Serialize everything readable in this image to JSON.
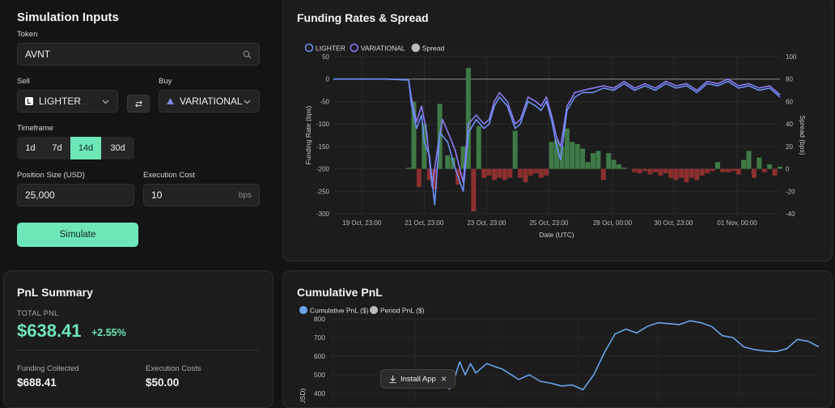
{
  "sim": {
    "title": "Simulation Inputs",
    "token_label": "Token",
    "token_value": "AVNT",
    "sell_label": "Sell",
    "sell_value": "LIGHTER",
    "buy_label": "Buy",
    "buy_value": "VARIATIONAL",
    "timeframe_label": "Timeframe",
    "timeframes": [
      "1d",
      "7d",
      "14d",
      "30d"
    ],
    "timeframe_selected": "14d",
    "position_label": "Position Size (USD)",
    "position_value": "25,000",
    "exec_label": "Execution Cost",
    "exec_value": "10",
    "exec_unit": "bps",
    "simulate_label": "Simulate"
  },
  "pnl": {
    "title": "PnL Summary",
    "total_label": "TOTAL PNL",
    "total_value": "$638.41",
    "total_pct": "+2.55%",
    "funding_label": "Funding Collected",
    "funding_value": "$688.41",
    "exec_label": "Execution Costs",
    "exec_value": "$50.00"
  },
  "install": {
    "label": "Install App",
    "close": "×"
  },
  "colors": {
    "accent": "#6ee7b7",
    "lighter": "#6b8ff5",
    "variational": "#8b7cf6",
    "spread_pos": "#3f7a46",
    "spread_neg": "#8b2f2f"
  },
  "chart_data": [
    {
      "type": "line+bar",
      "title": "Funding Rates & Spread",
      "legend": [
        "LIGHTER",
        "VARIATIONAL",
        "Spread"
      ],
      "xlabel": "Date (UTC)",
      "ylabel": "Funding Rate (bps)",
      "y2label": "Spread (bps)",
      "ylim": [
        -300,
        50
      ],
      "y2lim": [
        -40,
        100
      ],
      "yticks": [
        50,
        0,
        -50,
        -100,
        -150,
        -200,
        -250,
        -300
      ],
      "y2ticks": [
        100,
        80,
        60,
        40,
        20,
        0,
        -20,
        -40
      ],
      "xticks": [
        "19 Oct, 23:00",
        "21 Oct, 23:00",
        "23 Oct, 23:00",
        "25 Oct, 23:00",
        "28 Oct, 00:00",
        "30 Oct, 23:00",
        "01 Nov, 00:00"
      ],
      "x_hours": [
        0,
        48,
        96,
        144,
        193,
        240,
        289
      ],
      "x_range": [
        -22,
        322
      ],
      "series": [
        {
          "name": "LIGHTER",
          "color": "#6b8ff5",
          "points": [
            [
              -22,
              0
            ],
            [
              0,
              0
            ],
            [
              20,
              0
            ],
            [
              36,
              -2
            ],
            [
              38,
              -55
            ],
            [
              42,
              -110
            ],
            [
              46,
              -80
            ],
            [
              48,
              -140
            ],
            [
              52,
              -170
            ],
            [
              56,
              -280
            ],
            [
              58,
              -200
            ],
            [
              60,
              -120
            ],
            [
              66,
              -140
            ],
            [
              72,
              -200
            ],
            [
              78,
              -250
            ],
            [
              82,
              -120
            ],
            [
              88,
              -90
            ],
            [
              94,
              -110
            ],
            [
              98,
              -100
            ],
            [
              102,
              -60
            ],
            [
              106,
              -40
            ],
            [
              112,
              -60
            ],
            [
              118,
              -110
            ],
            [
              122,
              -100
            ],
            [
              128,
              -50
            ],
            [
              134,
              -60
            ],
            [
              138,
              -70
            ],
            [
              142,
              -50
            ],
            [
              146,
              -90
            ],
            [
              150,
              -150
            ],
            [
              153,
              -180
            ],
            [
              158,
              -70
            ],
            [
              164,
              -40
            ],
            [
              170,
              -30
            ],
            [
              178,
              -30
            ],
            [
              186,
              -20
            ],
            [
              194,
              -25
            ],
            [
              202,
              -10
            ],
            [
              210,
              -25
            ],
            [
              218,
              -15
            ],
            [
              226,
              -25
            ],
            [
              234,
              -10
            ],
            [
              242,
              -20
            ],
            [
              250,
              -15
            ],
            [
              258,
              -30
            ],
            [
              266,
              -10
            ],
            [
              274,
              -15
            ],
            [
              282,
              -5
            ],
            [
              290,
              -20
            ],
            [
              298,
              -15
            ],
            [
              306,
              -25
            ],
            [
              314,
              -20
            ],
            [
              322,
              -40
            ]
          ]
        },
        {
          "name": "VARIATIONAL",
          "color": "#8b7cf6",
          "points": [
            [
              -22,
              0
            ],
            [
              0,
              0
            ],
            [
              20,
              0
            ],
            [
              36,
              -2
            ],
            [
              38,
              -40
            ],
            [
              42,
              -95
            ],
            [
              46,
              -60
            ],
            [
              50,
              -120
            ],
            [
              54,
              -240
            ],
            [
              58,
              -160
            ],
            [
              62,
              -90
            ],
            [
              68,
              -130
            ],
            [
              72,
              -160
            ],
            [
              78,
              -230
            ],
            [
              82,
              -100
            ],
            [
              88,
              -80
            ],
            [
              94,
              -100
            ],
            [
              98,
              -90
            ],
            [
              102,
              -50
            ],
            [
              106,
              -30
            ],
            [
              112,
              -50
            ],
            [
              118,
              -100
            ],
            [
              122,
              -90
            ],
            [
              128,
              -40
            ],
            [
              134,
              -50
            ],
            [
              138,
              -60
            ],
            [
              142,
              -40
            ],
            [
              146,
              -80
            ],
            [
              150,
              -130
            ],
            [
              153,
              -150
            ],
            [
              158,
              -60
            ],
            [
              164,
              -30
            ],
            [
              170,
              -25
            ],
            [
              178,
              -20
            ],
            [
              186,
              -15
            ],
            [
              194,
              -20
            ],
            [
              202,
              -5
            ],
            [
              210,
              -20
            ],
            [
              218,
              -10
            ],
            [
              226,
              -20
            ],
            [
              234,
              -5
            ],
            [
              242,
              -15
            ],
            [
              250,
              -10
            ],
            [
              258,
              -25
            ],
            [
              266,
              -5
            ],
            [
              274,
              -10
            ],
            [
              282,
              0
            ],
            [
              290,
              -15
            ],
            [
              298,
              -10
            ],
            [
              306,
              -20
            ],
            [
              314,
              -15
            ],
            [
              322,
              -35
            ]
          ]
        },
        {
          "name": "Spread",
          "color": "#7a7a7a",
          "bars": [
            [
              36,
              1
            ],
            [
              40,
              60
            ],
            [
              44,
              -16
            ],
            [
              48,
              40
            ],
            [
              52,
              -10
            ],
            [
              56,
              -18
            ],
            [
              60,
              58
            ],
            [
              66,
              12
            ],
            [
              70,
              10
            ],
            [
              74,
              -14
            ],
            [
              78,
              20
            ],
            [
              82,
              90
            ],
            [
              86,
              -38
            ],
            [
              90,
              38
            ],
            [
              94,
              -8
            ],
            [
              98,
              -6
            ],
            [
              102,
              -10
            ],
            [
              106,
              -8
            ],
            [
              110,
              -10
            ],
            [
              114,
              -8
            ],
            [
              118,
              34
            ],
            [
              122,
              -8
            ],
            [
              126,
              -12
            ],
            [
              130,
              -6
            ],
            [
              134,
              -4
            ],
            [
              138,
              -8
            ],
            [
              142,
              -6
            ],
            [
              146,
              24
            ],
            [
              150,
              26
            ],
            [
              154,
              20
            ],
            [
              158,
              36
            ],
            [
              162,
              24
            ],
            [
              166,
              22
            ],
            [
              170,
              18
            ],
            [
              174,
              6
            ],
            [
              178,
              14
            ],
            [
              182,
              16
            ],
            [
              186,
              -10
            ],
            [
              190,
              14
            ],
            [
              194,
              8
            ],
            [
              198,
              4
            ],
            [
              202,
              1
            ],
            [
              210,
              -3
            ],
            [
              214,
              -4
            ],
            [
              218,
              -2
            ],
            [
              222,
              -5
            ],
            [
              226,
              -3
            ],
            [
              230,
              -6
            ],
            [
              234,
              -4
            ],
            [
              238,
              -8
            ],
            [
              242,
              -10
            ],
            [
              246,
              -8
            ],
            [
              250,
              -12
            ],
            [
              254,
              -8
            ],
            [
              258,
              -10
            ],
            [
              262,
              -6
            ],
            [
              266,
              -4
            ],
            [
              270,
              -2
            ],
            [
              274,
              6
            ],
            [
              278,
              -3
            ],
            [
              282,
              -3
            ],
            [
              286,
              -2
            ],
            [
              290,
              -5
            ],
            [
              294,
              8
            ],
            [
              298,
              16
            ],
            [
              302,
              -8
            ],
            [
              306,
              10
            ],
            [
              310,
              -3
            ],
            [
              314,
              4
            ],
            [
              318,
              -6
            ],
            [
              322,
              2
            ]
          ]
        }
      ]
    },
    {
      "type": "line",
      "title": "Cumulative PnL",
      "legend": [
        "Cumulative PnL ($)",
        "Period PnL ($)"
      ],
      "ylabel": "USD)",
      "ylim": [
        350,
        800
      ],
      "yticks": [
        800,
        700,
        600,
        500,
        400
      ],
      "series": [
        {
          "name": "Cumulative PnL ($)",
          "color": "#6ba3e8",
          "points": [
            [
              0,
              420
            ],
            [
              2,
              480
            ],
            [
              4,
              570
            ],
            [
              6,
              500
            ],
            [
              8,
              560
            ],
            [
              10,
              510
            ],
            [
              14,
              560
            ],
            [
              20,
              530
            ],
            [
              26,
              475
            ],
            [
              30,
              500
            ],
            [
              34,
              465
            ],
            [
              38,
              455
            ],
            [
              42,
              440
            ],
            [
              46,
              445
            ],
            [
              50,
              420
            ],
            [
              54,
              500
            ],
            [
              58,
              620
            ],
            [
              62,
              720
            ],
            [
              66,
              745
            ],
            [
              70,
              725
            ],
            [
              74,
              760
            ],
            [
              78,
              780
            ],
            [
              82,
              775
            ],
            [
              86,
              770
            ],
            [
              90,
              790
            ],
            [
              94,
              780
            ],
            [
              98,
              760
            ],
            [
              102,
              710
            ],
            [
              106,
              700
            ],
            [
              110,
              650
            ],
            [
              114,
              635
            ],
            [
              118,
              628
            ],
            [
              122,
              625
            ],
            [
              126,
              640
            ],
            [
              130,
              690
            ],
            [
              134,
              680
            ],
            [
              138,
              650
            ]
          ]
        }
      ]
    }
  ]
}
